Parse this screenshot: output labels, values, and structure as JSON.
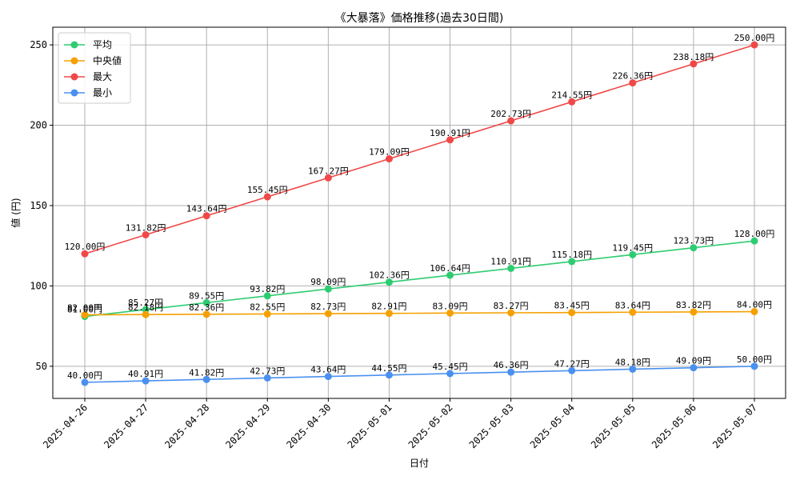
{
  "chart_data": {
    "type": "line",
    "title": "《大暴落》価格推移(過去30日間)",
    "xlabel": "日付",
    "ylabel": "値 (円)",
    "categories": [
      "2025-04-26",
      "2025-04-27",
      "2025-04-28",
      "2025-04-29",
      "2025-04-30",
      "2025-05-01",
      "2025-05-02",
      "2025-05-03",
      "2025-05-04",
      "2025-05-05",
      "2025-05-06",
      "2025-05-07"
    ],
    "ylim": [
      30,
      261
    ],
    "yticks": [
      50,
      100,
      150,
      200,
      250
    ],
    "grid": true,
    "legend_position": "top-left",
    "value_suffix": "円",
    "series": [
      {
        "name": "平均",
        "color": "#2ecc71",
        "values": [
          81.0,
          85.27,
          89.55,
          93.82,
          98.09,
          102.36,
          106.64,
          110.91,
          115.18,
          119.45,
          123.73,
          128.0
        ]
      },
      {
        "name": "中央値",
        "color": "#f5a000",
        "values": [
          82.0,
          82.18,
          82.36,
          82.55,
          82.73,
          82.91,
          83.09,
          83.27,
          83.45,
          83.64,
          83.82,
          84.0
        ]
      },
      {
        "name": "最大",
        "color": "#f04848",
        "values": [
          120.0,
          131.82,
          143.64,
          155.45,
          167.27,
          179.09,
          190.91,
          202.73,
          214.55,
          226.36,
          238.18,
          250.0
        ]
      },
      {
        "name": "最小",
        "color": "#4a90f0",
        "values": [
          40.0,
          40.91,
          41.82,
          42.73,
          43.64,
          44.55,
          45.45,
          46.36,
          47.27,
          48.18,
          49.09,
          50.0
        ]
      }
    ]
  }
}
